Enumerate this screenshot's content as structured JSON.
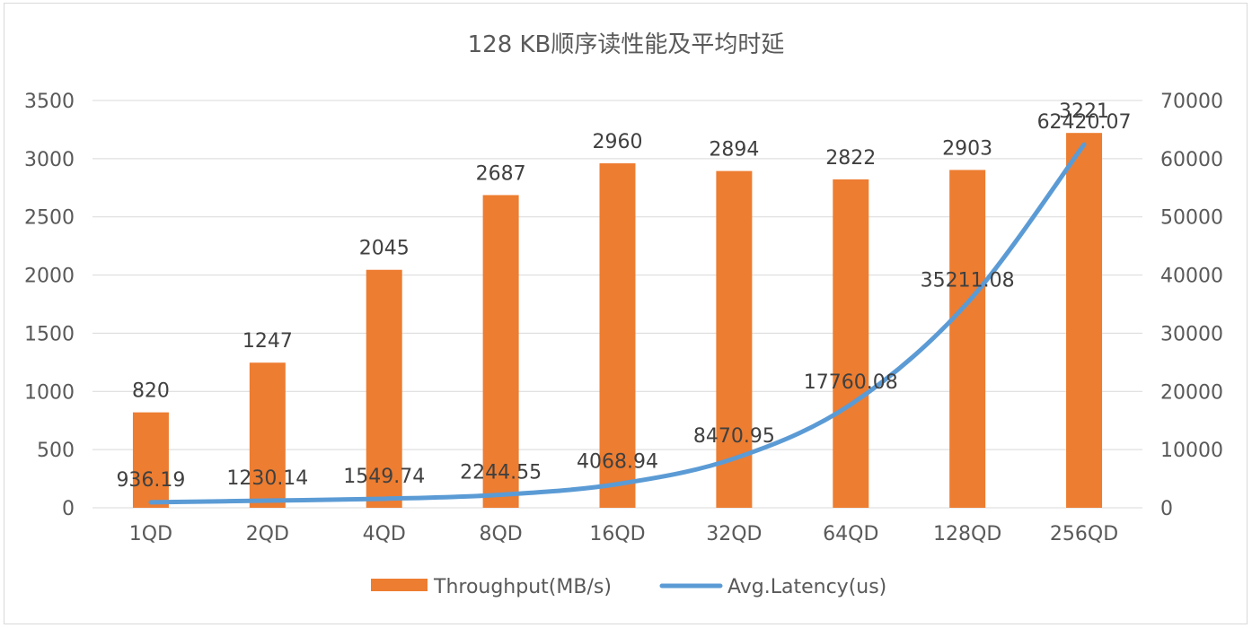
{
  "chart_data": {
    "type": "bar+line",
    "title": "128 KB顺序读性能及平均时延",
    "categories": [
      "1QD",
      "2QD",
      "4QD",
      "8QD",
      "16QD",
      "32QD",
      "64QD",
      "128QD",
      "256QD"
    ],
    "series": [
      {
        "name": "Throughput(MB/s)",
        "type": "bar",
        "axis": "left",
        "color": "#ED7D31",
        "values": [
          820,
          1247,
          2045,
          2687,
          2960,
          2894,
          2822,
          2903,
          3221
        ],
        "labels": [
          "820",
          "1247",
          "2045",
          "2687",
          "2960",
          "2894",
          "2822",
          "2903",
          "3221"
        ]
      },
      {
        "name": "Avg.Latency(us)",
        "type": "line",
        "axis": "right",
        "color": "#5B9BD5",
        "values": [
          936.19,
          1230.14,
          1549.74,
          2244.55,
          4068.94,
          8470.95,
          17760.08,
          35211.08,
          62420.07
        ],
        "labels": [
          "936.19",
          "1230.14",
          "1549.74",
          "2244.55",
          "4068.94",
          "8470.95",
          "17760.08",
          "35211.08",
          "62420.07"
        ]
      }
    ],
    "y_left": {
      "min": 0,
      "max": 3500,
      "step": 500,
      "ticks": [
        "0",
        "500",
        "1000",
        "1500",
        "2000",
        "2500",
        "3000",
        "3500"
      ]
    },
    "y_right": {
      "min": 0,
      "max": 70000,
      "step": 10000,
      "ticks": [
        "0",
        "10000",
        "20000",
        "30000",
        "40000",
        "50000",
        "60000",
        "70000"
      ]
    },
    "grid": true,
    "legend_position": "bottom"
  }
}
